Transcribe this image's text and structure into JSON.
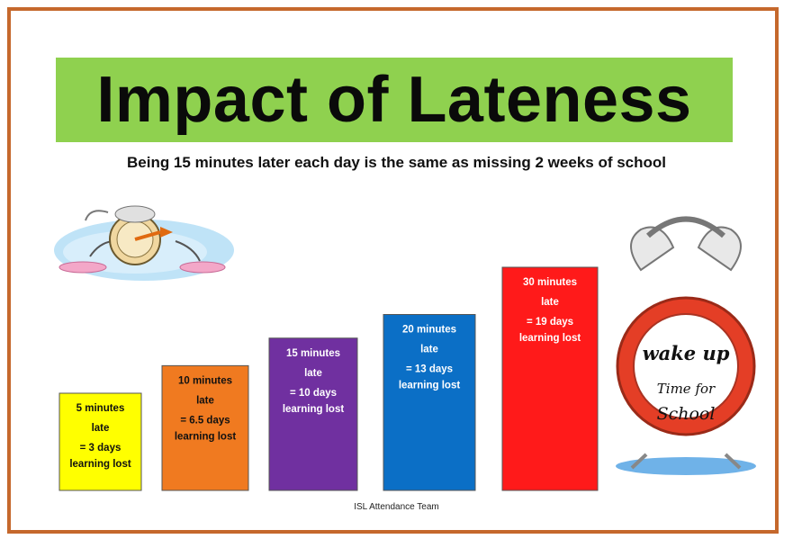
{
  "page": {
    "title": "Impact of Lateness",
    "subtitle": "Being 15 minutes later each day is the same as missing 2 weeks of school",
    "footer": "ISL Attendance Team"
  },
  "illustrations": {
    "running_clock": "running-cartoon-clock-icon",
    "alarm_clock_lines": [
      "wake up",
      "Time for",
      "School"
    ]
  },
  "colors": {
    "border": "#c5682c",
    "title_band": "#8fd14f"
  },
  "chart_data": {
    "type": "bar",
    "categories": [
      "5 minutes late",
      "10 minutes late",
      "15 minutes late",
      "20 minutes late",
      "30 minutes late"
    ],
    "values": [
      3,
      6.5,
      10,
      13,
      19
    ],
    "ylabel": "",
    "ylim": [
      0,
      19
    ],
    "grid": false,
    "labels": [
      [
        "5 minutes",
        "late",
        "= 3 days",
        "learning lost"
      ],
      [
        "10 minutes",
        "late",
        "= 6.5 days",
        "learning lost"
      ],
      [
        "15 minutes",
        "late",
        "= 10 days",
        "learning lost"
      ],
      [
        "20 minutes",
        "late",
        "= 13 days",
        "learning lost"
      ],
      [
        "30 minutes",
        "late",
        "= 19 days",
        "learning lost"
      ]
    ],
    "colors": [
      "#ffff00",
      "#f07a20",
      "#7030a0",
      "#0b6fc6",
      "#ff1a1a"
    ],
    "text_colors": [
      "#111111",
      "#111111",
      "#ffffff",
      "#ffffff",
      "#ffffff"
    ]
  }
}
